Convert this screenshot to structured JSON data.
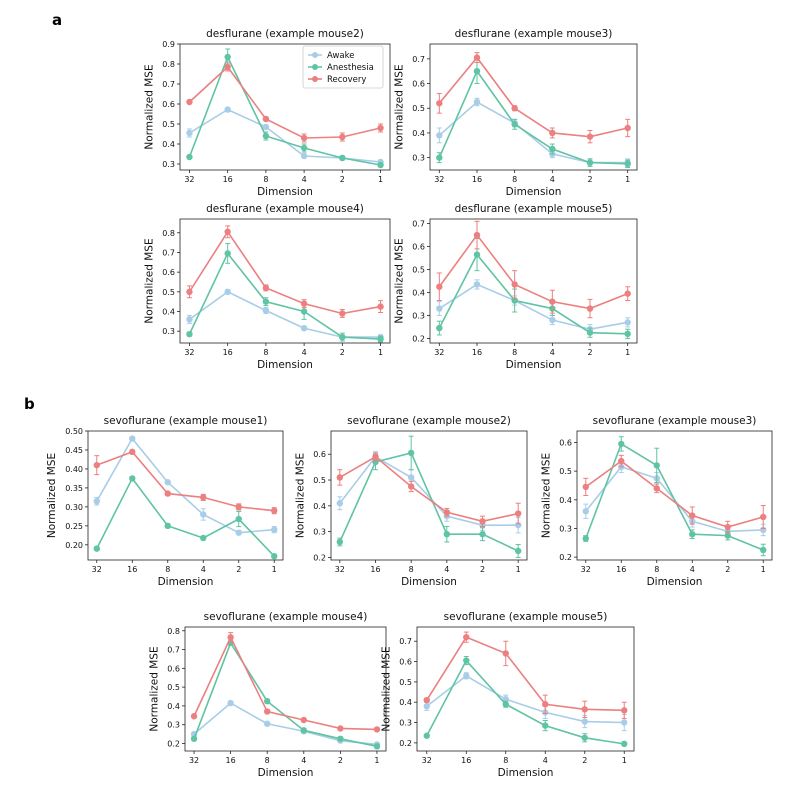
{
  "panel_labels": [
    "a",
    "b"
  ],
  "legend": {
    "entries": [
      {
        "label": "Awake",
        "color": "#A8CDE8"
      },
      {
        "label": "Anesthesia",
        "color": "#5FC4A3"
      },
      {
        "label": "Recovery",
        "color": "#EC7F7F"
      }
    ]
  },
  "chart_data": [
    {
      "type": "line",
      "title": "desflurane (example mouse2)",
      "xlabel": "Dimension",
      "ylabel": "Normalized MSE",
      "categories": [
        "32",
        "16",
        "8",
        "4",
        "2",
        "1"
      ],
      "ylim": [
        0.27,
        0.9
      ],
      "yticks": [
        "0.3",
        "0.4",
        "0.5",
        "0.6",
        "0.7",
        "0.8",
        "0.9"
      ],
      "legend_position": "top-right",
      "series": [
        {
          "name": "Awake",
          "values": [
            0.455,
            0.572,
            0.485,
            0.34,
            0.33,
            0.31
          ],
          "err": [
            0.02,
            0.01,
            0.01,
            0.01,
            0.01,
            0.01
          ]
        },
        {
          "name": "Anesthesia",
          "values": [
            0.335,
            0.835,
            0.44,
            0.38,
            0.33,
            0.295
          ],
          "err": [
            0.005,
            0.04,
            0.02,
            0.02,
            0.01,
            0.01
          ]
        },
        {
          "name": "Recovery",
          "values": [
            0.61,
            0.785,
            0.525,
            0.43,
            0.435,
            0.48
          ],
          "err": [
            0.005,
            0.02,
            0.01,
            0.02,
            0.02,
            0.02
          ]
        }
      ]
    },
    {
      "type": "line",
      "title": "desflurane (example mouse3)",
      "xlabel": "Dimension",
      "ylabel": "Normalized MSE",
      "categories": [
        "32",
        "16",
        "8",
        "4",
        "2",
        "1"
      ],
      "ylim": [
        0.25,
        0.76
      ],
      "yticks": [
        "0.3",
        "0.4",
        "0.5",
        "0.6",
        "0.7"
      ],
      "series": [
        {
          "name": "Awake",
          "values": [
            0.39,
            0.525,
            0.44,
            0.315,
            0.28,
            0.28
          ],
          "err": [
            0.03,
            0.015,
            0.015,
            0.015,
            0.015,
            0.015
          ]
        },
        {
          "name": "Anesthesia",
          "values": [
            0.3,
            0.65,
            0.435,
            0.335,
            0.28,
            0.275
          ],
          "err": [
            0.02,
            0.05,
            0.02,
            0.02,
            0.015,
            0.015
          ]
        },
        {
          "name": "Recovery",
          "values": [
            0.52,
            0.705,
            0.5,
            0.4,
            0.385,
            0.42
          ],
          "err": [
            0.04,
            0.02,
            0.01,
            0.02,
            0.025,
            0.035
          ]
        }
      ]
    },
    {
      "type": "line",
      "title": "desflurane (example mouse4)",
      "xlabel": "Dimension",
      "ylabel": "Normalized MSE",
      "categories": [
        "32",
        "16",
        "8",
        "4",
        "2",
        "1"
      ],
      "ylim": [
        0.24,
        0.87
      ],
      "yticks": [
        "0.3",
        "0.4",
        "0.5",
        "0.6",
        "0.7",
        "0.8"
      ],
      "series": [
        {
          "name": "Awake",
          "values": [
            0.36,
            0.5,
            0.405,
            0.315,
            0.27,
            0.27
          ],
          "err": [
            0.02,
            0.01,
            0.015,
            0.01,
            0.01,
            0.01
          ]
        },
        {
          "name": "Anesthesia",
          "values": [
            0.285,
            0.695,
            0.45,
            0.4,
            0.27,
            0.26
          ],
          "err": [
            0.01,
            0.05,
            0.02,
            0.04,
            0.02,
            0.015
          ]
        },
        {
          "name": "Recovery",
          "values": [
            0.5,
            0.805,
            0.52,
            0.44,
            0.39,
            0.425
          ],
          "err": [
            0.03,
            0.03,
            0.015,
            0.02,
            0.02,
            0.03
          ]
        }
      ]
    },
    {
      "type": "line",
      "title": "desflurane (example mouse5)",
      "xlabel": "Dimension",
      "ylabel": "Normalized MSE",
      "categories": [
        "32",
        "16",
        "8",
        "4",
        "2",
        "1"
      ],
      "ylim": [
        0.18,
        0.72
      ],
      "yticks": [
        "0.2",
        "0.3",
        "0.4",
        "0.5",
        "0.6",
        "0.7"
      ],
      "series": [
        {
          "name": "Awake",
          "values": [
            0.33,
            0.435,
            0.365,
            0.28,
            0.24,
            0.27
          ],
          "err": [
            0.03,
            0.02,
            0.02,
            0.02,
            0.02,
            0.02
          ]
        },
        {
          "name": "Anesthesia",
          "values": [
            0.245,
            0.565,
            0.365,
            0.33,
            0.225,
            0.22
          ],
          "err": [
            0.03,
            0.07,
            0.05,
            0.03,
            0.02,
            0.02
          ]
        },
        {
          "name": "Recovery",
          "values": [
            0.425,
            0.65,
            0.435,
            0.36,
            0.33,
            0.395
          ],
          "err": [
            0.06,
            0.06,
            0.06,
            0.05,
            0.04,
            0.03
          ]
        }
      ]
    },
    {
      "type": "line",
      "title": "sevoflurane (example mouse1)",
      "xlabel": "Dimension",
      "ylabel": "Normalized MSE",
      "categories": [
        "32",
        "16",
        "8",
        "4",
        "2",
        "1"
      ],
      "ylim": [
        0.16,
        0.5
      ],
      "yticks": [
        "0.20",
        "0.25",
        "0.30",
        "0.35",
        "0.40",
        "0.45",
        "0.50"
      ],
      "series": [
        {
          "name": "Awake",
          "values": [
            0.315,
            0.48,
            0.365,
            0.28,
            0.232,
            0.24
          ],
          "err": [
            0.01,
            0.005,
            0.005,
            0.015,
            0.005,
            0.008
          ]
        },
        {
          "name": "Anesthesia",
          "values": [
            0.19,
            0.375,
            0.25,
            0.218,
            0.268,
            0.17
          ],
          "err": [
            0.005,
            0.005,
            0.005,
            0.005,
            0.02,
            0.005
          ]
        },
        {
          "name": "Recovery",
          "values": [
            0.41,
            0.445,
            0.335,
            0.325,
            0.3,
            0.29
          ],
          "err": [
            0.025,
            0.005,
            0.005,
            0.008,
            0.008,
            0.008
          ]
        }
      ]
    },
    {
      "type": "line",
      "title": "sevoflurane (example mouse2)",
      "xlabel": "Dimension",
      "ylabel": "Normalized MSE",
      "categories": [
        "32",
        "16",
        "8",
        "4",
        "2",
        "1"
      ],
      "ylim": [
        0.19,
        0.69
      ],
      "yticks": [
        "0.2",
        "0.3",
        "0.4",
        "0.5",
        "0.6"
      ],
      "series": [
        {
          "name": "Awake",
          "values": [
            0.41,
            0.59,
            0.51,
            0.36,
            0.325,
            0.325
          ],
          "err": [
            0.025,
            0.02,
            0.03,
            0.02,
            0.02,
            0.03
          ]
        },
        {
          "name": "Anesthesia",
          "values": [
            0.26,
            0.57,
            0.605,
            0.29,
            0.29,
            0.225
          ],
          "err": [
            0.015,
            0.03,
            0.065,
            0.03,
            0.025,
            0.025
          ]
        },
        {
          "name": "Recovery",
          "values": [
            0.51,
            0.59,
            0.475,
            0.375,
            0.34,
            0.37
          ],
          "err": [
            0.03,
            0.015,
            0.02,
            0.015,
            0.02,
            0.04
          ]
        }
      ]
    },
    {
      "type": "line",
      "title": "sevoflurane (example mouse3)",
      "xlabel": "Dimension",
      "ylabel": "Normalized MSE",
      "categories": [
        "32",
        "16",
        "8",
        "4",
        "2",
        "1"
      ],
      "ylim": [
        0.19,
        0.64
      ],
      "yticks": [
        "0.2",
        "0.3",
        "0.4",
        "0.5",
        "0.6"
      ],
      "series": [
        {
          "name": "Awake",
          "values": [
            0.36,
            0.515,
            0.475,
            0.325,
            0.29,
            0.295
          ],
          "err": [
            0.025,
            0.02,
            0.02,
            0.02,
            0.015,
            0.02
          ]
        },
        {
          "name": "Anesthesia",
          "values": [
            0.265,
            0.595,
            0.52,
            0.28,
            0.275,
            0.225
          ],
          "err": [
            0.01,
            0.025,
            0.06,
            0.015,
            0.015,
            0.02
          ]
        },
        {
          "name": "Recovery",
          "values": [
            0.445,
            0.535,
            0.44,
            0.345,
            0.305,
            0.34
          ],
          "err": [
            0.03,
            0.02,
            0.015,
            0.03,
            0.02,
            0.04
          ]
        }
      ]
    },
    {
      "type": "line",
      "title": "sevoflurane (example mouse4)",
      "xlabel": "Dimension",
      "ylabel": "Normalized MSE",
      "categories": [
        "32",
        "16",
        "8",
        "4",
        "2",
        "1"
      ],
      "ylim": [
        0.16,
        0.82
      ],
      "yticks": [
        "0.2",
        "0.3",
        "0.4",
        "0.5",
        "0.6",
        "0.7",
        "0.8"
      ],
      "series": [
        {
          "name": "Awake",
          "values": [
            0.25,
            0.415,
            0.305,
            0.265,
            0.215,
            0.195
          ],
          "err": [
            0.01,
            0.01,
            0.005,
            0.01,
            0.005,
            0.005
          ]
        },
        {
          "name": "Anesthesia",
          "values": [
            0.225,
            0.735,
            0.425,
            0.27,
            0.225,
            0.185
          ],
          "err": [
            0.01,
            0.01,
            0.01,
            0.01,
            0.01,
            0.01
          ]
        },
        {
          "name": "Recovery",
          "values": [
            0.345,
            0.765,
            0.37,
            0.325,
            0.28,
            0.275
          ],
          "err": [
            0.005,
            0.025,
            0.01,
            0.005,
            0.005,
            0.005
          ]
        }
      ]
    },
    {
      "type": "line",
      "title": "sevoflurane (example mouse5)",
      "xlabel": "Dimension",
      "ylabel": "Normalized MSE",
      "categories": [
        "32",
        "16",
        "8",
        "4",
        "2",
        "1"
      ],
      "ylim": [
        0.16,
        0.77
      ],
      "yticks": [
        "0.2",
        "0.3",
        "0.4",
        "0.5",
        "0.6",
        "0.7"
      ],
      "series": [
        {
          "name": "Awake",
          "values": [
            0.38,
            0.53,
            0.415,
            0.35,
            0.305,
            0.3
          ],
          "err": [
            0.02,
            0.015,
            0.02,
            0.03,
            0.03,
            0.04
          ]
        },
        {
          "name": "Anesthesia",
          "values": [
            0.235,
            0.605,
            0.39,
            0.285,
            0.225,
            0.195
          ],
          "err": [
            0.005,
            0.02,
            0.015,
            0.025,
            0.02,
            0.005
          ]
        },
        {
          "name": "Recovery",
          "values": [
            0.41,
            0.72,
            0.64,
            0.39,
            0.365,
            0.36
          ],
          "err": [
            0.01,
            0.025,
            0.06,
            0.045,
            0.04,
            0.04
          ]
        }
      ]
    }
  ]
}
